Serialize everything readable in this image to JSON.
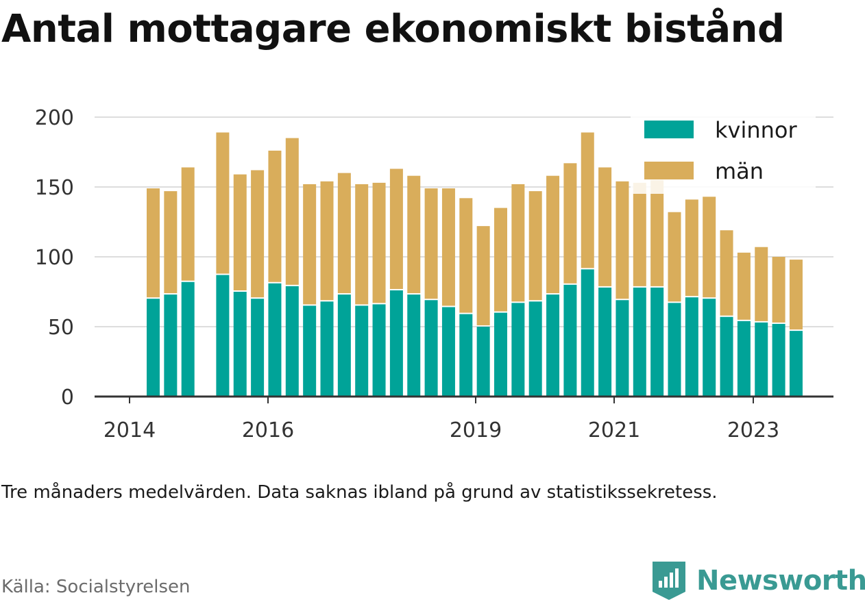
{
  "title": "Antal mottagare ekonomiskt bistånd",
  "note": "Tre månaders medelvärden. Data saknas ibland på grund av statistikssekretess.",
  "source": "Källa: Socialstyrelsen",
  "brand": {
    "name": "Newsworthy",
    "icon": "newsworthy-logo-icon"
  },
  "colors": {
    "kvinnor": "#00a398",
    "man": "#d9ad5b",
    "grid": "#dddddd",
    "axis": "#333333",
    "brand": "#3a9a93"
  },
  "chart_data": {
    "type": "bar",
    "stacked": true,
    "x_tick_labels": [
      "2014",
      "2016",
      "2019",
      "2021",
      "2023"
    ],
    "y_ticks": [
      0,
      50,
      100,
      150,
      200
    ],
    "ylim": [
      0,
      200
    ],
    "grid": true,
    "legend_position": "top-right",
    "series": [
      {
        "name": "kvinnor",
        "color": "#00a398",
        "values": [
          70,
          73,
          82,
          null,
          87,
          75,
          70,
          81,
          79,
          65,
          68,
          73,
          65,
          66,
          76,
          73,
          69,
          64,
          59,
          50,
          60,
          67,
          68,
          73,
          80,
          91,
          78,
          69,
          78,
          78,
          67,
          71,
          70,
          57,
          54,
          53,
          52,
          47
        ]
      },
      {
        "name": "män",
        "color": "#d9ad5b",
        "values": [
          79,
          74,
          82,
          null,
          102,
          84,
          92,
          95,
          106,
          87,
          86,
          87,
          87,
          87,
          87,
          85,
          80,
          85,
          83,
          72,
          75,
          85,
          79,
          85,
          87,
          98,
          86,
          85,
          75,
          77,
          65,
          70,
          73,
          62,
          49,
          54,
          48,
          51
        ]
      }
    ]
  }
}
